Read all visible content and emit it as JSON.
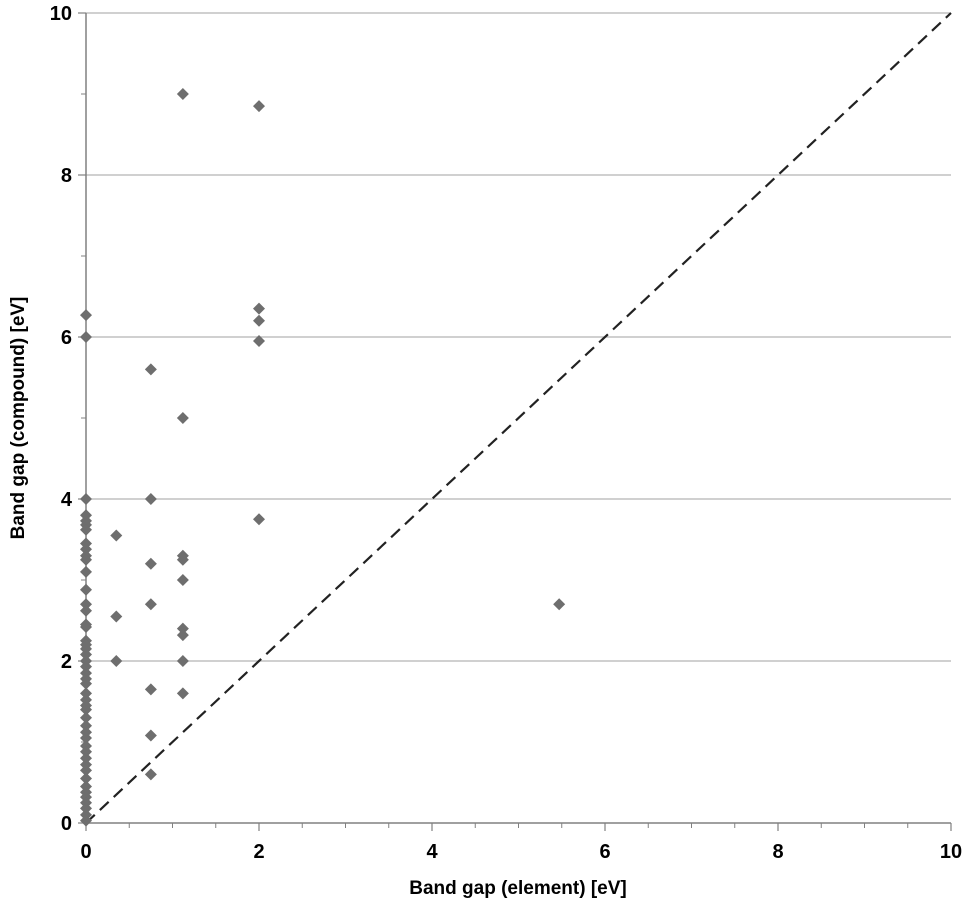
{
  "chart_data": {
    "type": "scatter",
    "title": "",
    "xlabel": "Band gap (element) [eV]",
    "ylabel": "Band gap (compound) [eV]",
    "xlim": [
      0,
      10
    ],
    "ylim": [
      0,
      10
    ],
    "x_ticks": [
      "0",
      "2",
      "4",
      "6",
      "8",
      "10"
    ],
    "y_ticks": [
      "0",
      "2",
      "4",
      "6",
      "8",
      "10"
    ],
    "grid": "horizontal major gridlines",
    "legend": "none",
    "marker": "diamond",
    "marker_color": "#6e6e6e",
    "reference_line": {
      "style": "dashed",
      "from": [
        0,
        0
      ],
      "to": [
        10,
        10
      ]
    },
    "series": [
      {
        "points": [
          [
            0,
            6.27
          ],
          [
            0,
            6.0
          ],
          [
            0,
            4.0
          ],
          [
            0,
            3.8
          ],
          [
            0,
            3.73
          ],
          [
            0,
            3.68
          ],
          [
            0,
            3.62
          ],
          [
            0,
            3.45
          ],
          [
            0,
            3.38
          ],
          [
            0,
            3.3
          ],
          [
            0,
            3.25
          ],
          [
            0,
            3.1
          ],
          [
            0,
            2.88
          ],
          [
            0,
            2.7
          ],
          [
            0,
            2.62
          ],
          [
            0,
            2.45
          ],
          [
            0,
            2.42
          ],
          [
            0,
            2.25
          ],
          [
            0,
            2.2
          ],
          [
            0,
            2.15
          ],
          [
            0,
            2.08
          ],
          [
            0,
            2.0
          ],
          [
            0,
            1.93
          ],
          [
            0,
            1.85
          ],
          [
            0,
            1.78
          ],
          [
            0,
            1.72
          ],
          [
            0,
            1.6
          ],
          [
            0,
            1.52
          ],
          [
            0,
            1.45
          ],
          [
            0,
            1.4
          ],
          [
            0,
            1.3
          ],
          [
            0,
            1.2
          ],
          [
            0,
            1.12
          ],
          [
            0,
            1.05
          ],
          [
            0,
            0.95
          ],
          [
            0,
            0.88
          ],
          [
            0,
            0.8
          ],
          [
            0,
            0.72
          ],
          [
            0,
            0.65
          ],
          [
            0,
            0.55
          ],
          [
            0,
            0.45
          ],
          [
            0,
            0.38
          ],
          [
            0,
            0.32
          ],
          [
            0,
            0.25
          ],
          [
            0,
            0.18
          ],
          [
            0,
            0.1
          ],
          [
            0,
            0.03
          ],
          [
            0.35,
            3.55
          ],
          [
            0.35,
            2.55
          ],
          [
            0.35,
            2.0
          ],
          [
            0.75,
            5.6
          ],
          [
            0.75,
            4.0
          ],
          [
            0.75,
            3.2
          ],
          [
            0.75,
            2.7
          ],
          [
            0.75,
            1.65
          ],
          [
            0.75,
            1.08
          ],
          [
            0.75,
            0.6
          ],
          [
            1.12,
            9.0
          ],
          [
            1.12,
            5.0
          ],
          [
            1.12,
            3.3
          ],
          [
            1.12,
            3.25
          ],
          [
            1.12,
            3.0
          ],
          [
            1.12,
            2.4
          ],
          [
            1.12,
            2.32
          ],
          [
            1.12,
            2.0
          ],
          [
            1.12,
            1.6
          ],
          [
            2.0,
            8.85
          ],
          [
            2.0,
            6.35
          ],
          [
            2.0,
            6.2
          ],
          [
            2.0,
            5.95
          ],
          [
            2.0,
            3.75
          ],
          [
            5.47,
            2.7
          ]
        ]
      }
    ]
  }
}
